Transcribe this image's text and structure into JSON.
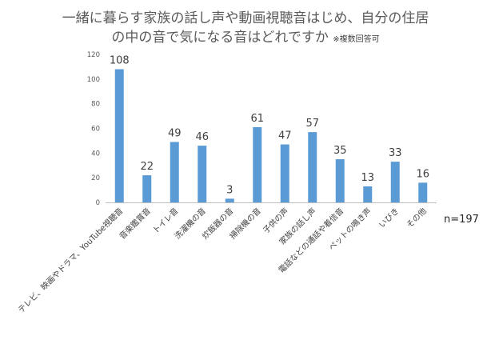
{
  "chart_data": {
    "type": "bar",
    "title_line1": "一緒に暮らす家族の話し声や動画視聴音はじめ、自分の住居",
    "title_line2": "の中の音で気になる音はどれですか",
    "title_note": "※複数回答可",
    "categories": [
      "テレビ、映画やドラマ、YouTube視聴音",
      "音楽鑑賞音",
      "トイレ音",
      "洗濯機の音",
      "炊飯器の音",
      "掃除機の音",
      "子供の声",
      "家族の話し声",
      "電話などの通話や着信音",
      "ペットの鳴き声",
      "いびき",
      "その他"
    ],
    "values": [
      108,
      22,
      49,
      46,
      3,
      61,
      47,
      57,
      35,
      13,
      33,
      16
    ],
    "yticks": [
      "0",
      "20",
      "40",
      "60",
      "80",
      "100",
      "120"
    ],
    "ylim": [
      0,
      120
    ],
    "xlabel": "",
    "ylabel": "",
    "sample_size": "n=197",
    "grid": false,
    "legend": "none",
    "bar_color": "#5B9BD5",
    "axis_color": "#BFBFBF"
  }
}
